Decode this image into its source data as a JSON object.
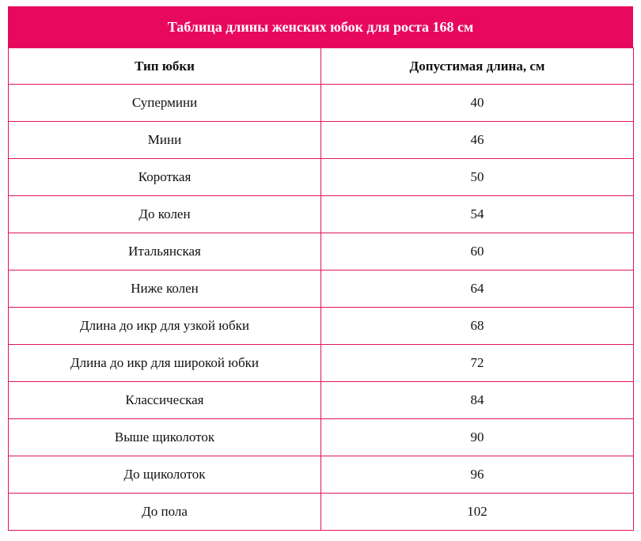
{
  "table": {
    "title": "Таблица длины женских юбок для роста 168 см",
    "header": [
      "Тип юбки",
      "Допустимая длина, см"
    ],
    "rows": [
      [
        "Супермини",
        "40"
      ],
      [
        "Мини",
        "46"
      ],
      [
        "Короткая",
        "50"
      ],
      [
        "До колен",
        "54"
      ],
      [
        "Итальянская",
        "60"
      ],
      [
        "Ниже колен",
        "64"
      ],
      [
        "Длина до икр для узкой юбки",
        "68"
      ],
      [
        "Длина до икр для широкой юбки",
        "72"
      ],
      [
        "Классическая",
        "84"
      ],
      [
        "Выше щиколоток",
        "90"
      ],
      [
        "До щиколоток",
        "96"
      ],
      [
        "До пола",
        "102"
      ]
    ]
  }
}
